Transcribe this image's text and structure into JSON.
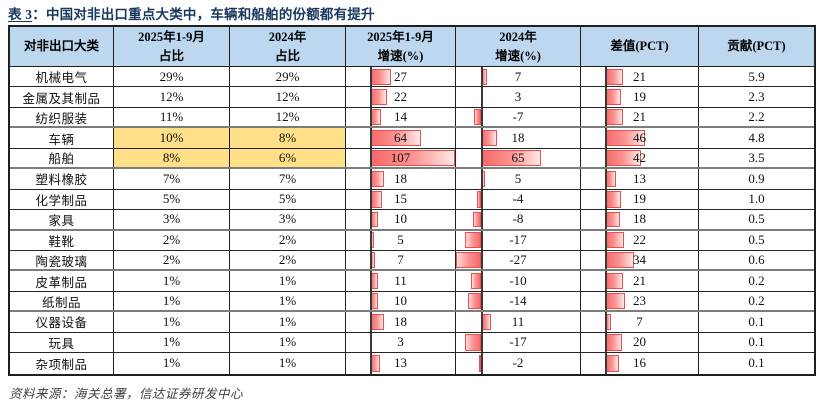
{
  "title": {
    "prefix": "表 3",
    "separator": "：",
    "text": "中国对非出口重点大类中，车辆和船舶的份额都有提升"
  },
  "source_note": "资料来源：海关总署，信达证券研发中心",
  "colors": {
    "title_text": "#17375E",
    "header_bg": "#BDD7EE",
    "highlight_bg": "#FFE089",
    "bar_fill_strong": "#F8696B",
    "bar_fill_light": "#FDE8E6",
    "bar_border": "#E8514F",
    "bar_axis": "#3A3A3A"
  },
  "chart_data": {
    "type": "table",
    "title": "表 3：中国对非出口重点大类中，车辆和船舶的份额都有提升",
    "columns": [
      "对非出口大类",
      "2025年1-9月占比",
      "2024年占比",
      "2025年1-9月增速(%)",
      "2024年增速(%)",
      "差值(PCT)",
      "贡献(PCT)"
    ],
    "header_lines": [
      [
        "对非出口大类"
      ],
      [
        "2025年1-9月",
        "占比"
      ],
      [
        "2024年",
        "占比"
      ],
      [
        "2025年1-9月",
        "增速(%)"
      ],
      [
        "2024年",
        "增速(%)"
      ],
      [
        "差值(PCT)"
      ],
      [
        "贡献(PCT)"
      ]
    ],
    "data_bar_columns": [
      "2025年1-9月增速(%)",
      "2024年增速(%)",
      "差值(PCT)"
    ],
    "data_bar_axis": {
      "min": -27,
      "max": 107
    },
    "highlighted_categories": [
      "车辆",
      "船舶"
    ],
    "rows": [
      {
        "category": "机械电气",
        "share_2025": "29%",
        "share_2024": "29%",
        "growth_2025": 27,
        "growth_2024": 7,
        "diff_pct": 21,
        "contribution_pct": "5.9",
        "highlight": false,
        "group_end": false
      },
      {
        "category": "金属及其制品",
        "share_2025": "12%",
        "share_2024": "12%",
        "growth_2025": 22,
        "growth_2024": 3,
        "diff_pct": 19,
        "contribution_pct": "2.3",
        "highlight": false,
        "group_end": false
      },
      {
        "category": "纺织服装",
        "share_2025": "11%",
        "share_2024": "12%",
        "growth_2025": 14,
        "growth_2024": -7,
        "diff_pct": 21,
        "contribution_pct": "2.2",
        "highlight": false,
        "group_end": true
      },
      {
        "category": "车辆",
        "share_2025": "10%",
        "share_2024": "8%",
        "growth_2025": 64,
        "growth_2024": 18,
        "diff_pct": 46,
        "contribution_pct": "4.8",
        "highlight": true,
        "group_end": false
      },
      {
        "category": "船舶",
        "share_2025": "8%",
        "share_2024": "6%",
        "growth_2025": 107,
        "growth_2024": 65,
        "diff_pct": 42,
        "contribution_pct": "3.5",
        "highlight": true,
        "group_end": true
      },
      {
        "category": "塑料橡胶",
        "share_2025": "7%",
        "share_2024": "7%",
        "growth_2025": 18,
        "growth_2024": 5,
        "diff_pct": 13,
        "contribution_pct": "0.9",
        "highlight": false,
        "group_end": false
      },
      {
        "category": "化学制品",
        "share_2025": "5%",
        "share_2024": "5%",
        "growth_2025": 15,
        "growth_2024": -4,
        "diff_pct": 19,
        "contribution_pct": "1.0",
        "highlight": false,
        "group_end": false
      },
      {
        "category": "家具",
        "share_2025": "3%",
        "share_2024": "3%",
        "growth_2025": 10,
        "growth_2024": -8,
        "diff_pct": 18,
        "contribution_pct": "0.5",
        "highlight": false,
        "group_end": true
      },
      {
        "category": "鞋靴",
        "share_2025": "2%",
        "share_2024": "2%",
        "growth_2025": 5,
        "growth_2024": -17,
        "diff_pct": 22,
        "contribution_pct": "0.5",
        "highlight": false,
        "group_end": false
      },
      {
        "category": "陶瓷玻璃",
        "share_2025": "2%",
        "share_2024": "2%",
        "growth_2025": 7,
        "growth_2024": -27,
        "diff_pct": 34,
        "contribution_pct": "0.6",
        "highlight": false,
        "group_end": true
      },
      {
        "category": "皮革制品",
        "share_2025": "1%",
        "share_2024": "1%",
        "growth_2025": 11,
        "growth_2024": -10,
        "diff_pct": 21,
        "contribution_pct": "0.2",
        "highlight": false,
        "group_end": false
      },
      {
        "category": "纸制品",
        "share_2025": "1%",
        "share_2024": "1%",
        "growth_2025": 10,
        "growth_2024": -14,
        "diff_pct": 23,
        "contribution_pct": "0.2",
        "highlight": false,
        "group_end": true
      },
      {
        "category": "仪器设备",
        "share_2025": "1%",
        "share_2024": "1%",
        "growth_2025": 18,
        "growth_2024": 11,
        "diff_pct": 7,
        "contribution_pct": "0.1",
        "highlight": false,
        "group_end": false
      },
      {
        "category": "玩具",
        "share_2025": "1%",
        "share_2024": "1%",
        "growth_2025": 3,
        "growth_2024": -17,
        "diff_pct": 20,
        "contribution_pct": "0.1",
        "highlight": false,
        "group_end": false
      },
      {
        "category": "杂项制品",
        "share_2025": "1%",
        "share_2024": "1%",
        "growth_2025": 13,
        "growth_2024": -2,
        "diff_pct": 16,
        "contribution_pct": "0.1",
        "highlight": false,
        "group_end": false
      }
    ]
  }
}
